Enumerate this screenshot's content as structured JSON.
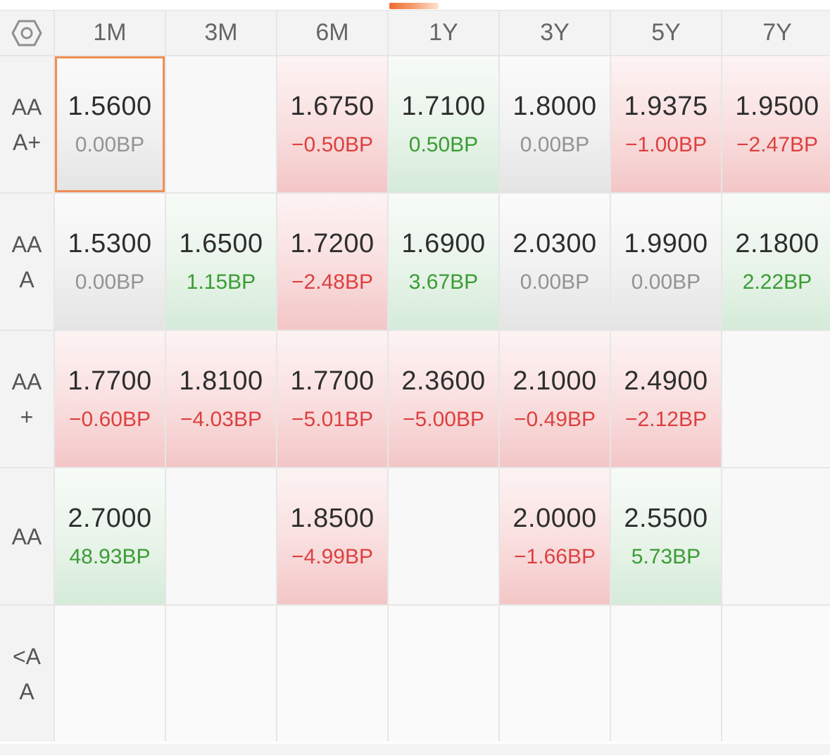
{
  "header": {
    "corner_icon": "settings-hexagon-icon",
    "tenors": [
      "1M",
      "3M",
      "6M",
      "1Y",
      "3Y",
      "5Y",
      "7Y"
    ]
  },
  "colors": {
    "up": "#3a9c34",
    "down": "#de3f3f",
    "flat": "#939393",
    "selected_border": "#ee8f54",
    "accent": "#ef6b2e"
  },
  "rows": [
    {
      "rating": "AAA+",
      "cells": [
        {
          "value": "1.5600",
          "change": "0.00BP",
          "trend": "flat",
          "selected": true
        },
        {
          "value": "",
          "change": "",
          "trend": "none"
        },
        {
          "value": "1.6750",
          "change": "−0.50BP",
          "trend": "down"
        },
        {
          "value": "1.7100",
          "change": "0.50BP",
          "trend": "up"
        },
        {
          "value": "1.8000",
          "change": "0.00BP",
          "trend": "flat"
        },
        {
          "value": "1.9375",
          "change": "−1.00BP",
          "trend": "down"
        },
        {
          "value": "1.9500",
          "change": "−2.47BP",
          "trend": "down"
        }
      ]
    },
    {
      "rating": "AAA",
      "cells": [
        {
          "value": "1.5300",
          "change": "0.00BP",
          "trend": "flat"
        },
        {
          "value": "1.6500",
          "change": "1.15BP",
          "trend": "up"
        },
        {
          "value": "1.7200",
          "change": "−2.48BP",
          "trend": "down"
        },
        {
          "value": "1.6900",
          "change": "3.67BP",
          "trend": "up"
        },
        {
          "value": "2.0300",
          "change": "0.00BP",
          "trend": "flat"
        },
        {
          "value": "1.9900",
          "change": "0.00BP",
          "trend": "flat"
        },
        {
          "value": "2.1800",
          "change": "2.22BP",
          "trend": "up"
        }
      ]
    },
    {
      "rating": "AA+",
      "cells": [
        {
          "value": "1.7700",
          "change": "−0.60BP",
          "trend": "down"
        },
        {
          "value": "1.8100",
          "change": "−4.03BP",
          "trend": "down"
        },
        {
          "value": "1.7700",
          "change": "−5.01BP",
          "trend": "down"
        },
        {
          "value": "2.3600",
          "change": "−5.00BP",
          "trend": "down"
        },
        {
          "value": "2.1000",
          "change": "−0.49BP",
          "trend": "down"
        },
        {
          "value": "2.4900",
          "change": "−2.12BP",
          "trend": "down"
        },
        {
          "value": "",
          "change": "",
          "trend": "none"
        }
      ]
    },
    {
      "rating": "AA",
      "cells": [
        {
          "value": "2.7000",
          "change": "48.93BP",
          "trend": "up"
        },
        {
          "value": "",
          "change": "",
          "trend": "none"
        },
        {
          "value": "1.8500",
          "change": "−4.99BP",
          "trend": "down"
        },
        {
          "value": "",
          "change": "",
          "trend": "none"
        },
        {
          "value": "2.0000",
          "change": "−1.66BP",
          "trend": "down"
        },
        {
          "value": "2.5500",
          "change": "5.73BP",
          "trend": "up"
        },
        {
          "value": "",
          "change": "",
          "trend": "none"
        }
      ]
    },
    {
      "rating": "<AA",
      "cells": [
        {
          "value": "",
          "change": "",
          "trend": "none"
        },
        {
          "value": "",
          "change": "",
          "trend": "none"
        },
        {
          "value": "",
          "change": "",
          "trend": "none"
        },
        {
          "value": "",
          "change": "",
          "trend": "none"
        },
        {
          "value": "",
          "change": "",
          "trend": "none"
        },
        {
          "value": "",
          "change": "",
          "trend": "none"
        },
        {
          "value": "",
          "change": "",
          "trend": "none"
        }
      ]
    }
  ]
}
